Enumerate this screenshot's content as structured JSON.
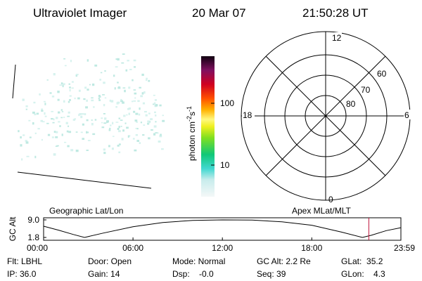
{
  "header": {
    "title": "Ultraviolet Imager",
    "date": "20 Mar 07",
    "time": "21:50:28 UT"
  },
  "colorbar": {
    "label": {
      "unit": "photon cm",
      "exp1": "-2",
      "mid": "s",
      "exp2": "-1"
    },
    "ticks": [
      "100",
      "10"
    ]
  },
  "polar": {
    "hours": [
      "12",
      "18",
      "6",
      "0"
    ],
    "latitudes": [
      "60",
      "70",
      "80"
    ]
  },
  "altitude": {
    "title_left": "Geographic Lat/Lon",
    "title_right": "Apex MLat/MLT",
    "y_label": "GC Alt",
    "ylim": [
      1.8,
      9.0
    ],
    "yticks": [
      {
        "value": 9.0,
        "label": "9.0"
      },
      {
        "value": 1.8,
        "label": "1.8"
      }
    ],
    "xlim": [
      0,
      23.983
    ],
    "xticks": [
      {
        "value": 0,
        "label": "00:00"
      },
      {
        "value": 6,
        "label": "06:00"
      },
      {
        "value": 12,
        "label": "12:00"
      },
      {
        "value": 18,
        "label": "18:00"
      },
      {
        "value": 23.983,
        "label": "23:59"
      }
    ],
    "x": [
      0,
      1,
      2,
      2.75,
      4,
      6,
      8,
      10,
      12,
      14,
      16,
      18,
      20,
      21.4,
      22,
      23,
      23.983
    ],
    "values": [
      6.4,
      4.8,
      3.0,
      1.8,
      3.6,
      6.2,
      7.9,
      8.8,
      9.0,
      8.9,
      8.2,
      6.8,
      4.0,
      1.8,
      2.7,
      4.6,
      5.8
    ],
    "marker_x": 21.83,
    "marker_color": "#c0143c"
  },
  "footer": {
    "rows": [
      [
        "Flt: LBHL",
        "Door: Open",
        "Mode: Normal",
        "GC Alt: 2.2 Re",
        "GLat:  35.2"
      ],
      [
        "IP: 36.0",
        "Gain: 14",
        "Dsp:    -0.0",
        "Seq: 39",
        "GLon:    4.3"
      ]
    ]
  }
}
